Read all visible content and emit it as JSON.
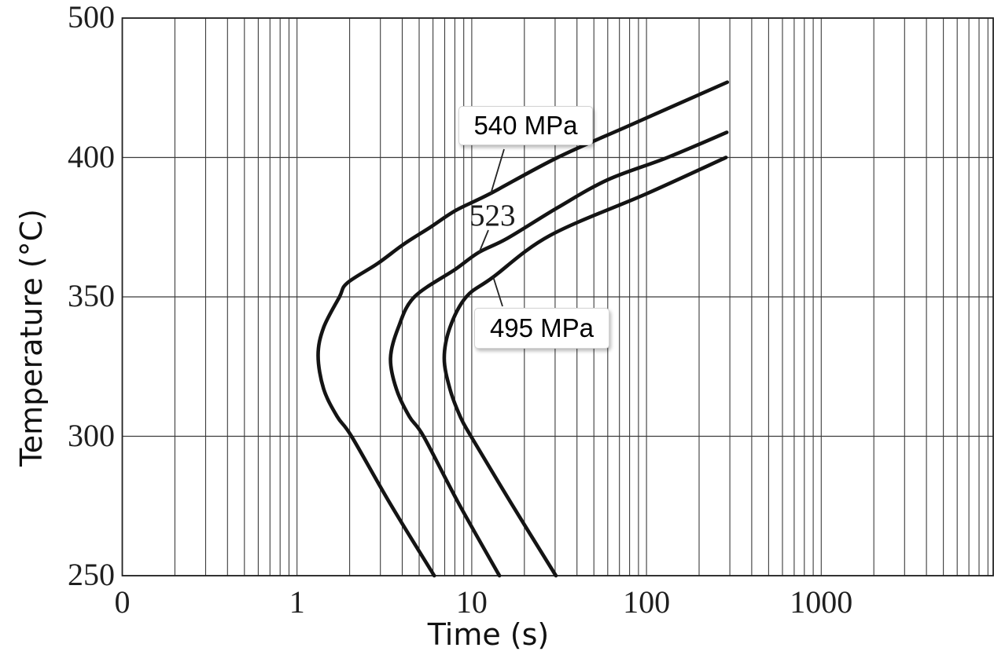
{
  "chart_data": {
    "type": "line",
    "title": "",
    "xlabel": "Time (s)",
    "ylabel": "Temperature (°C)",
    "x_axis": {
      "scale": "log",
      "tick_labels": [
        "0",
        "1",
        "10",
        "100",
        "1000"
      ],
      "tick_values": [
        0.1,
        1,
        10,
        100,
        1000
      ],
      "range": [
        0.1,
        10000
      ],
      "minor_gridlines": true,
      "note": "left edge of log axis is labeled 0"
    },
    "y_axis": {
      "tick_labels": [
        "500",
        "400",
        "350",
        "300",
        "250"
      ],
      "tick_values": [
        500,
        400,
        350,
        300,
        250
      ],
      "range": [
        250,
        500
      ],
      "note": "ticks drawn evenly spaced although intervals differ (100 then 50 °C)"
    },
    "grid": "full log grid on, dark thin lines",
    "legend": "none; curves labeled by annotations",
    "series": [
      {
        "name": "540 MPa",
        "points_t_seconds_T_celsius": [
          [
            290,
            454
          ],
          [
            80,
            423
          ],
          [
            31,
            400
          ],
          [
            12.7,
            387
          ],
          [
            8.1,
            381
          ],
          [
            5.8,
            375
          ],
          [
            4.1,
            369
          ],
          [
            2.9,
            362
          ],
          [
            1.94,
            355
          ],
          [
            1.75,
            350
          ],
          [
            1.42,
            339
          ],
          [
            1.32,
            329
          ],
          [
            1.42,
            317
          ],
          [
            1.7,
            307
          ],
          [
            2.05,
            300
          ],
          [
            3.4,
            276
          ],
          [
            6.1,
            250
          ]
        ]
      },
      {
        "name": "523",
        "points_t_seconds_T_celsius": [
          [
            288,
            418
          ],
          [
            132,
            400
          ],
          [
            60,
            392
          ],
          [
            31,
            382
          ],
          [
            16,
            371
          ],
          [
            11,
            366
          ],
          [
            8.1,
            360
          ],
          [
            4.7,
            350
          ],
          [
            3.8,
            339
          ],
          [
            3.43,
            328
          ],
          [
            3.7,
            317
          ],
          [
            4.4,
            307
          ],
          [
            5.3,
            300
          ],
          [
            8.4,
            276
          ],
          [
            14.4,
            250
          ]
        ]
      },
      {
        "name": "495 MPa",
        "points_t_seconds_T_celsius": [
          [
            285,
            400
          ],
          [
            100,
            387
          ],
          [
            28,
            372
          ],
          [
            13.2,
            357
          ],
          [
            9.3,
            350
          ],
          [
            7.5,
            339
          ],
          [
            6.96,
            328
          ],
          [
            7.5,
            317
          ],
          [
            8.6,
            307
          ],
          [
            9.9,
            300
          ],
          [
            16.8,
            276
          ],
          [
            30.3,
            250
          ]
        ]
      }
    ],
    "annotations": [
      {
        "text": "540 MPa",
        "boxed": true,
        "attached_series": "540 MPa"
      },
      {
        "text": "523",
        "boxed": false,
        "attached_series": "523"
      },
      {
        "text": "495 MPa",
        "boxed": true,
        "attached_series": "495 MPa"
      }
    ],
    "colors": {
      "background": "#ffffff",
      "grid": "#3b3b3b",
      "curve": "#141414",
      "text": "#1a1a1a",
      "label_box_bg": "#ffffff",
      "label_box_border": "#d4d4d4"
    }
  }
}
